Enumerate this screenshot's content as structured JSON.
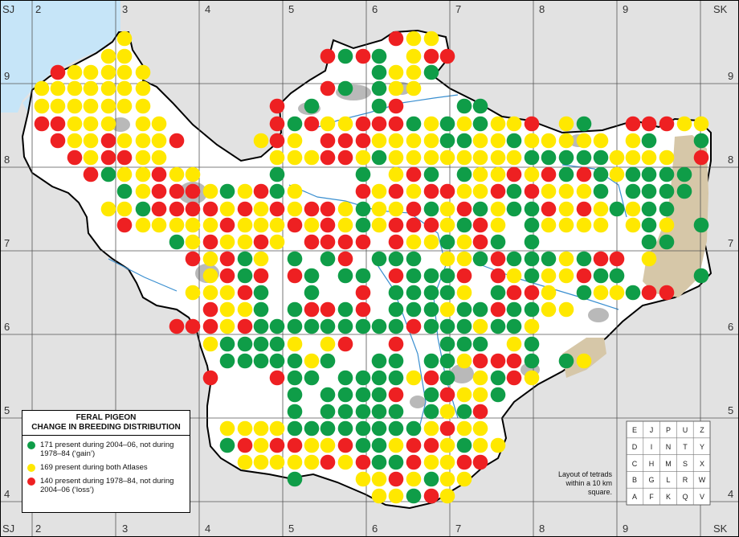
{
  "colors": {
    "gain": "#0f9d48",
    "both": "#ffe800",
    "loss": "#ee2022",
    "sea": "#c6e5f8",
    "outside": "#e2e2e2",
    "county": "#ffffff",
    "urban": "#b9b9b9",
    "upland": "#d6c7a8",
    "river": "#3a8fd0"
  },
  "grid": {
    "corner_labels": [
      "SJ",
      "SK",
      "SJ",
      "SK"
    ],
    "column_labels": [
      "2",
      "3",
      "4",
      "5",
      "6",
      "7",
      "8",
      "9"
    ],
    "row_labels": [
      "9",
      "8",
      "7",
      "6",
      "5",
      "4"
    ]
  },
  "legend": {
    "title": [
      "FERAL PIGEON",
      "CHANGE IN BREEDING DISTRIBUTION"
    ],
    "items": [
      {
        "color": "gain",
        "count": 171,
        "text": "171 present during 2004–06, not during 1978–84 (‘gain’)"
      },
      {
        "color": "both",
        "count": 169,
        "text": "169 present during both Atlases"
      },
      {
        "color": "loss",
        "count": 140,
        "text": "140 present during 1978–84, not during 2004–06 (‘loss’)"
      }
    ]
  },
  "tetrad_layout": {
    "rows": [
      [
        "E",
        "J",
        "P",
        "U",
        "Z"
      ],
      [
        "D",
        "I",
        "N",
        "T",
        "Y"
      ],
      [
        "C",
        "H",
        "M",
        "S",
        "X"
      ],
      [
        "B",
        "G",
        "L",
        "R",
        "W"
      ],
      [
        "A",
        "F",
        "K",
        "Q",
        "V"
      ]
    ],
    "caption": "Layout of tetrads within a 10 km square."
  }
}
